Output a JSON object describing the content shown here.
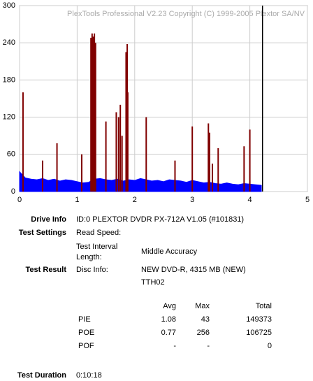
{
  "chart_data": {
    "type": "plextools",
    "title": "PlexTools Professional V2.23 Copyright (C) 1999-2005 Plextor SA/NV",
    "xlim": [
      0,
      5
    ],
    "xticks": [
      0,
      1,
      2,
      3,
      4,
      5
    ],
    "ylim": [
      0,
      300
    ],
    "yticks": [
      0,
      60,
      120,
      180,
      240,
      300
    ],
    "grid": true,
    "end_x": 4.22,
    "series": [
      {
        "color": "#0000ff",
        "kind": "area",
        "x": [
          0,
          0.1,
          0.2,
          0.3,
          0.4,
          0.5,
          0.6,
          0.7,
          0.8,
          0.9,
          1.0,
          1.1,
          1.2,
          1.3,
          1.4,
          1.5,
          1.6,
          1.7,
          1.8,
          1.9,
          2.0,
          2.1,
          2.2,
          2.3,
          2.4,
          2.5,
          2.6,
          2.7,
          2.8,
          2.9,
          3.0,
          3.1,
          3.2,
          3.3,
          3.4,
          3.5,
          3.6,
          3.7,
          3.8,
          3.9,
          4.0,
          4.1,
          4.2
        ],
        "values": [
          32,
          22,
          20,
          19,
          21,
          18,
          20,
          17,
          19,
          18,
          16,
          14,
          15,
          20,
          21,
          19,
          18,
          20,
          17,
          19,
          18,
          21,
          19,
          17,
          18,
          16,
          19,
          18,
          17,
          15,
          18,
          16,
          14,
          15,
          13,
          12,
          14,
          12,
          11,
          13,
          12,
          11,
          10
        ]
      },
      {
        "color": "#800000",
        "kind": "spikes",
        "x": [
          0.06,
          0.4,
          0.65,
          1.08,
          1.24,
          1.26,
          1.28,
          1.3,
          1.32,
          1.5,
          1.68,
          1.72,
          1.75,
          1.78,
          1.85,
          1.87,
          1.88,
          2.2,
          2.7,
          3.0,
          3.28,
          3.3,
          3.35,
          3.45,
          3.9,
          4.0
        ],
        "values": [
          160,
          50,
          78,
          60,
          248,
          255,
          250,
          255,
          240,
          113,
          128,
          120,
          140,
          90,
          225,
          238,
          160,
          120,
          50,
          105,
          110,
          95,
          45,
          70,
          73,
          100
        ]
      }
    ]
  },
  "report": {
    "drive_info": {
      "label": "Drive Info",
      "value": "ID:0 PLEXTOR DVDR PX-712A V1.05 (#101831)"
    },
    "test_settings": {
      "label": "Test Settings",
      "read_speed": "Read Speed:",
      "interval_label": [
        "Test Interval",
        "Length:"
      ],
      "interval": "Middle Accuracy"
    },
    "test_result": {
      "label": "Test Result",
      "disc_info_label": "Disc Info:",
      "disc_info": [
        "NEW DVD-R, 4315 MB (NEW)",
        "TTH02"
      ],
      "columns": [
        "Avg",
        "Max",
        "Total"
      ],
      "rows": [
        [
          "PIE",
          1.08,
          43,
          149373
        ],
        [
          "POE",
          0.77,
          256,
          106725
        ],
        [
          "POF",
          "-",
          "-",
          0
        ]
      ]
    },
    "test_duration": {
      "label": "Test Duration",
      "value": "0:10:18"
    }
  }
}
